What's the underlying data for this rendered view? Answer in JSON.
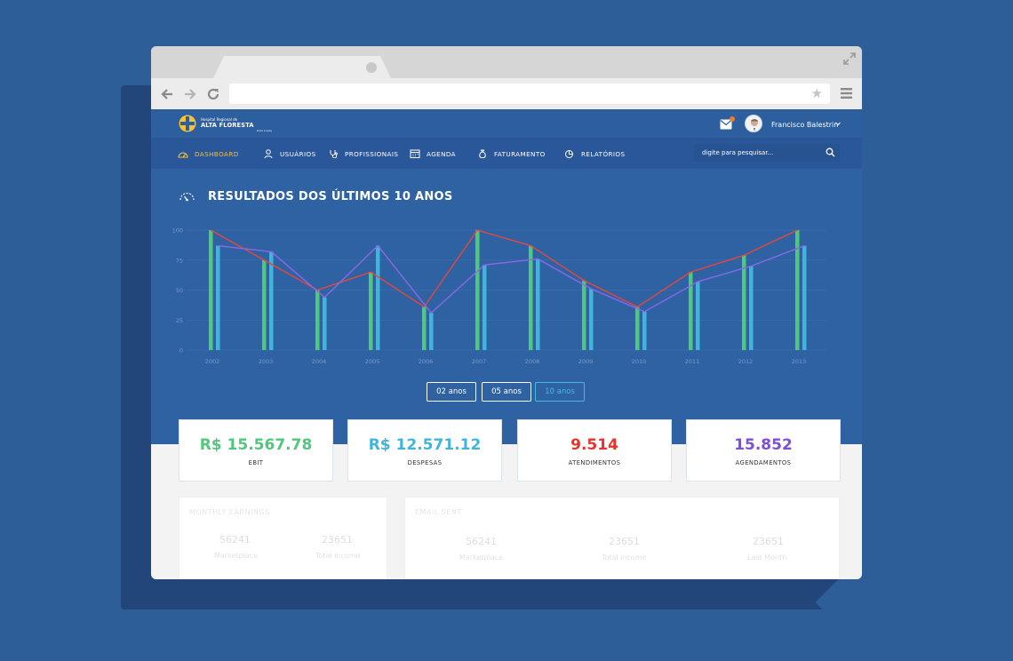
{
  "header": {
    "logo_small": "Hospital Regional de",
    "logo_main": "ALTA FLORESTA",
    "logo_tiny": "Rosa Lopes",
    "user_name": "Francisco Balestrin",
    "notification_color": "#f47a24"
  },
  "nav": {
    "items": [
      {
        "label": "DASHBOARD",
        "icon": "dashboard-icon",
        "active": true
      },
      {
        "label": "USUÁRIOS",
        "icon": "user-icon",
        "active": false
      },
      {
        "label": "PROFISSIONAIS",
        "icon": "stethoscope-icon",
        "active": false
      },
      {
        "label": "AGENDA",
        "icon": "calendar-icon",
        "active": false
      },
      {
        "label": "FATURAMENTO",
        "icon": "money-bag-icon",
        "active": false
      },
      {
        "label": "RELATÓRIOS",
        "icon": "pie-chart-icon",
        "active": false
      }
    ],
    "search_placeholder": "digite para pesquisar..."
  },
  "section": {
    "title": "RESULTADOS DOS ÚLTIMOS 10 ANOS"
  },
  "chart_data": {
    "type": "bar",
    "title": "",
    "xlabel": "",
    "ylabel": "",
    "ylim": [
      0,
      100
    ],
    "yticks": [
      0,
      25,
      50,
      75,
      100
    ],
    "categories": [
      "2002",
      "2003",
      "2004",
      "2005",
      "2006",
      "2007",
      "2008",
      "2009",
      "2010",
      "2011",
      "2012",
      "2013"
    ],
    "series": [
      {
        "type": "bar",
        "color": "#4fc77c",
        "values": [
          100,
          75,
          50,
          65,
          36,
          100,
          87,
          58,
          36,
          65,
          79,
          100
        ]
      },
      {
        "type": "bar",
        "color": "#3fb5dc",
        "values": [
          87,
          82,
          44,
          87,
          31,
          71,
          76,
          51,
          32,
          57,
          70,
          87
        ]
      },
      {
        "type": "line",
        "color": "#e8473b",
        "values": [
          100,
          75,
          50,
          65,
          36,
          100,
          87,
          58,
          36,
          65,
          79,
          100
        ]
      },
      {
        "type": "line",
        "color": "#8d67e6",
        "values": [
          87,
          82,
          44,
          87,
          31,
          71,
          76,
          51,
          32,
          57,
          70,
          87
        ]
      }
    ],
    "grid": true
  },
  "range": {
    "buttons": [
      "02 anos",
      "05 anos",
      "10 anos"
    ],
    "active_index": 2
  },
  "kpis": [
    {
      "value": "R$ 15.567.78",
      "label": "EBIT",
      "color": "#4fc77c"
    },
    {
      "value": "R$ 12.571.12",
      "label": "DESPESAS",
      "color": "#3fb5dc"
    },
    {
      "value": "9.514",
      "label": "ATENDIMENTOS",
      "color": "#e8322b"
    },
    {
      "value": "15.852",
      "label": "AGENDAMENTOS",
      "color": "#7d4fd9"
    }
  ],
  "cards": {
    "monthly": {
      "title": "MONTHLY EARNINGS",
      "stats": [
        {
          "value": "56241",
          "label": "Marketplace"
        },
        {
          "value": "23651",
          "label": "Total income"
        }
      ]
    },
    "email": {
      "title": "EMAIL SENT",
      "stats": [
        {
          "value": "56241",
          "label": "Marketplace"
        },
        {
          "value": "23651",
          "label": "Total income"
        },
        {
          "value": "23651",
          "label": "Last Month"
        }
      ]
    }
  }
}
